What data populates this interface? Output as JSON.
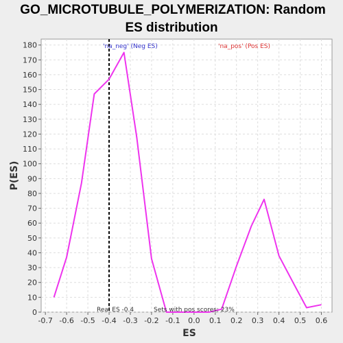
{
  "chart_data": {
    "type": "line",
    "title_line1": "GO_MICROTUBULE_POLYMERIZATION: Random",
    "title_line2": "ES distribution",
    "xlabel": "ES",
    "ylabel": "P(ES)",
    "xlim": [
      -0.72,
      0.65
    ],
    "ylim": [
      0,
      184
    ],
    "x_ticks": [
      -0.7,
      -0.6,
      -0.5,
      -0.4,
      -0.3,
      -0.2,
      -0.1,
      0.0,
      0.1,
      0.2,
      0.3,
      0.4,
      0.5,
      0.6
    ],
    "x_tick_labels": [
      "-0.7",
      "-0.6",
      "-0.5",
      "-0.4",
      "-0.3",
      "-0.2",
      "-0.1",
      "0.0",
      "0.1",
      "0.2",
      "0.3",
      "0.4",
      "0.5",
      "0.6"
    ],
    "y_ticks": [
      0,
      10,
      20,
      30,
      40,
      50,
      60,
      70,
      80,
      90,
      100,
      110,
      120,
      130,
      140,
      150,
      160,
      170,
      180
    ],
    "y_tick_labels": [
      "0",
      "10",
      "20",
      "30",
      "40",
      "50",
      "60",
      "70",
      "80",
      "90",
      "100",
      "110",
      "120",
      "130",
      "140",
      "150",
      "160",
      "170",
      "180"
    ],
    "grid": true,
    "series": [
      {
        "color": "#ee33ee",
        "x": [
          -0.66,
          -0.6,
          -0.53,
          -0.47,
          -0.4,
          -0.33,
          -0.27,
          -0.2,
          -0.13,
          -0.07,
          0.0,
          0.07,
          0.13,
          0.2,
          0.27,
          0.33,
          0.4,
          0.47,
          0.53,
          0.6
        ],
        "y": [
          10,
          37,
          87,
          147,
          157,
          175,
          118,
          36,
          0,
          0,
          0,
          0,
          2,
          31,
          58,
          76,
          38,
          19,
          3,
          5
        ]
      }
    ],
    "real_es_line": {
      "x": -0.4,
      "color": "#000000"
    },
    "legend": [
      {
        "text": "'na_neg' (Neg ES)",
        "color": "#3333cc",
        "position": "top-left"
      },
      {
        "text": "'na_pos' (Pos ES)",
        "color": "#dd3333",
        "position": "top-right"
      }
    ],
    "annotations": {
      "real_es": "Real ES -0.4",
      "sets_pos": "Sets with pos scores: 23%"
    }
  }
}
